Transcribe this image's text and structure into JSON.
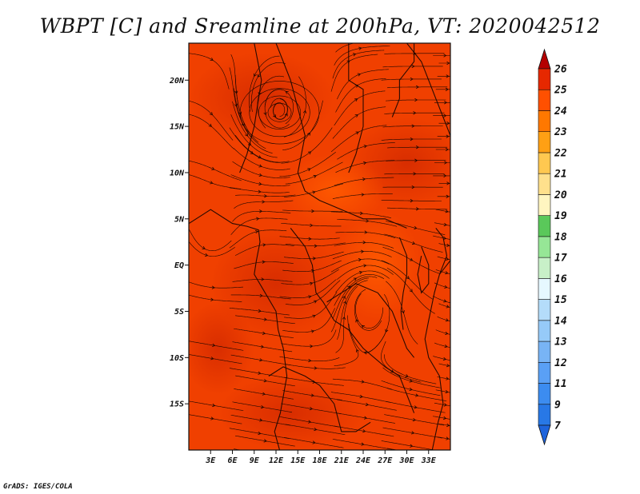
{
  "chart_data": {
    "type": "heatmap",
    "title": "WBPT [C] and Sreamline at 200hPa, VT: 2020042512",
    "field": "WBPT [C]",
    "level": "200hPa",
    "valid_time": "2020042512",
    "overlay": "streamlines",
    "xlim": [
      0,
      36
    ],
    "ylim": [
      -20,
      24
    ],
    "x_ticks": [
      {
        "value": 3,
        "label": "3E"
      },
      {
        "value": 6,
        "label": "6E"
      },
      {
        "value": 9,
        "label": "9E"
      },
      {
        "value": 12,
        "label": "12E"
      },
      {
        "value": 15,
        "label": "15E"
      },
      {
        "value": 18,
        "label": "18E"
      },
      {
        "value": 21,
        "label": "21E"
      },
      {
        "value": 24,
        "label": "24E"
      },
      {
        "value": 27,
        "label": "27E"
      },
      {
        "value": 30,
        "label": "30E"
      },
      {
        "value": 33,
        "label": "33E"
      }
    ],
    "y_ticks": [
      {
        "value": 20,
        "label": "20N"
      },
      {
        "value": 15,
        "label": "15N"
      },
      {
        "value": 10,
        "label": "10N"
      },
      {
        "value": 5,
        "label": "5N"
      },
      {
        "value": 0,
        "label": "EQ"
      },
      {
        "value": -5,
        "label": "5S"
      },
      {
        "value": -10,
        "label": "10S"
      },
      {
        "value": -15,
        "label": "15S"
      }
    ],
    "dominant_range": [
      23,
      25
    ],
    "colorbar": {
      "levels": [
        "7",
        "9",
        "11",
        "12",
        "13",
        "14",
        "15",
        "16",
        "17",
        "18",
        "19",
        "20",
        "21",
        "22",
        "23",
        "24",
        "25",
        "26"
      ],
      "colors": [
        "#1e64dc",
        "#2878e6",
        "#3c8cf0",
        "#5aa0f5",
        "#78b4f5",
        "#96caf8",
        "#b4dcfa",
        "#e6f8ff",
        "#c8f0c8",
        "#96e696",
        "#5ac85a",
        "#fff5c0",
        "#ffe08c",
        "#ffc850",
        "#ffa014",
        "#ff7800",
        "#ff5000",
        "#e62800",
        "#b40000"
      ]
    }
  },
  "footer": {
    "credit": "GrADS: IGES/COLA"
  }
}
